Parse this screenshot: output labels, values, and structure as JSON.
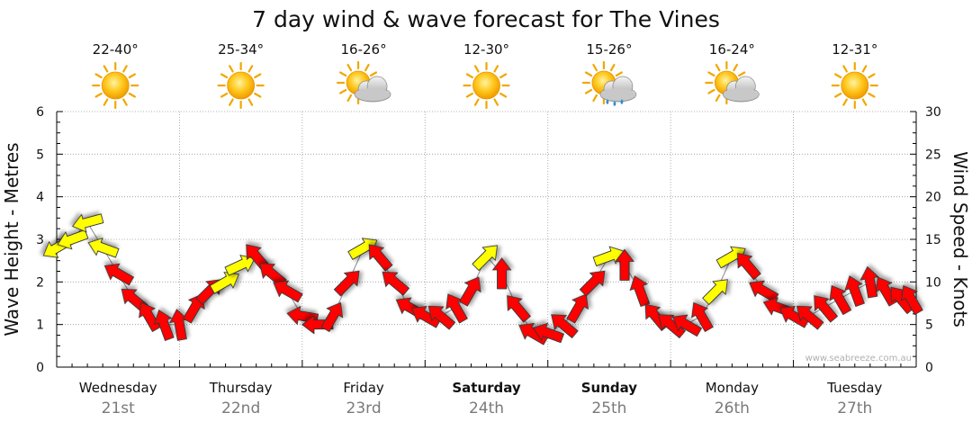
{
  "chart_data": {
    "type": "line",
    "title": "7 day wind & wave forecast for The Vines",
    "ylabel_left": "Wave Height - Metres",
    "ylabel_right": "Wind Speed - Knots",
    "ylim_left": [
      0,
      6
    ],
    "ylim_right": [
      0,
      30
    ],
    "yticks_left": [
      "0",
      "1",
      "2",
      "3",
      "4",
      "5",
      "6"
    ],
    "yticks_right": [
      "0",
      "5",
      "10",
      "15",
      "20",
      "25",
      "30"
    ],
    "grid": true,
    "watermark": "www.seabreeze.com.au",
    "days": [
      {
        "name": "Wednesday",
        "date": "21st",
        "bold": false,
        "temp": "22-40°",
        "icon": "sun-icon"
      },
      {
        "name": "Thursday",
        "date": "22nd",
        "bold": false,
        "temp": "25-34°",
        "icon": "sun-icon"
      },
      {
        "name": "Friday",
        "date": "23rd",
        "bold": false,
        "temp": "16-26°",
        "icon": "sun-cloud-icon"
      },
      {
        "name": "Saturday",
        "date": "24th",
        "bold": true,
        "temp": "12-30°",
        "icon": "sun-icon"
      },
      {
        "name": "Sunday",
        "date": "25th",
        "bold": true,
        "temp": "15-26°",
        "icon": "sun-cloud-rain-icon"
      },
      {
        "name": "Monday",
        "date": "26th",
        "bold": false,
        "temp": "16-24°",
        "icon": "sun-cloud-icon"
      },
      {
        "name": "Tuesday",
        "date": "27th",
        "bold": false,
        "temp": "12-31°",
        "icon": "sun-icon"
      }
    ],
    "wind_series": {
      "name": "Wind Speed",
      "time_hours": [
        0,
        3,
        6,
        9,
        12,
        15,
        18,
        21,
        24,
        27,
        30,
        33,
        36,
        39,
        42,
        45,
        48,
        51,
        54,
        57,
        60,
        63,
        66,
        69,
        72,
        75,
        78,
        81,
        84,
        87,
        90,
        93,
        96,
        99,
        102,
        105,
        108,
        111,
        114,
        117,
        120,
        123,
        126,
        129,
        132,
        135,
        138,
        141,
        144,
        147,
        150,
        153,
        156,
        159,
        162,
        165,
        167
      ],
      "knots": [
        14,
        15,
        17,
        14,
        11,
        8,
        6,
        5,
        5,
        7,
        9,
        10,
        12,
        13,
        11,
        9,
        6,
        5,
        6,
        10,
        14,
        13,
        10,
        7,
        6,
        6,
        7,
        9,
        13,
        11,
        7,
        4,
        4,
        5,
        7,
        10,
        13,
        12,
        9,
        6,
        5,
        5,
        6,
        9,
        13,
        12,
        9,
        7,
        6,
        6,
        7,
        8,
        9,
        10,
        9,
        8,
        8
      ],
      "arrow_colors": [
        "#ffff00",
        "#ffff00",
        "#ffff00",
        "#ffff00",
        "#ff0000",
        "#ff0000",
        "#ff0000",
        "#ff0000",
        "#ff0000",
        "#ff0000",
        "#ff0000",
        "#ffff00",
        "#ffff00",
        "#ff0000",
        "#ff0000",
        "#ff0000",
        "#ff0000",
        "#ff0000",
        "#ff0000",
        "#ff0000",
        "#ffff00",
        "#ff0000",
        "#ff0000",
        "#ff0000",
        "#ff0000",
        "#ff0000",
        "#ff0000",
        "#ff0000",
        "#ffff00",
        "#ff0000",
        "#ff0000",
        "#ff0000",
        "#ff0000",
        "#ff0000",
        "#ff0000",
        "#ff0000",
        "#ffff00",
        "#ff0000",
        "#ff0000",
        "#ff0000",
        "#ff0000",
        "#ff0000",
        "#ff0000",
        "#ffff00",
        "#ffff00",
        "#ff0000",
        "#ff0000",
        "#ff0000",
        "#ff0000",
        "#ff0000",
        "#ff0000",
        "#ff0000",
        "#ff0000",
        "#ff0000",
        "#ff0000",
        "#ff0000",
        "#ff0000"
      ],
      "direction_deg": [
        210,
        200,
        195,
        160,
        150,
        140,
        120,
        110,
        100,
        60,
        45,
        30,
        25,
        130,
        140,
        150,
        170,
        180,
        60,
        45,
        30,
        130,
        140,
        150,
        150,
        140,
        120,
        60,
        45,
        90,
        130,
        150,
        160,
        140,
        60,
        45,
        20,
        90,
        110,
        130,
        140,
        150,
        120,
        45,
        30,
        130,
        150,
        160,
        150,
        140,
        130,
        120,
        110,
        100,
        120,
        130,
        120
      ]
    }
  }
}
